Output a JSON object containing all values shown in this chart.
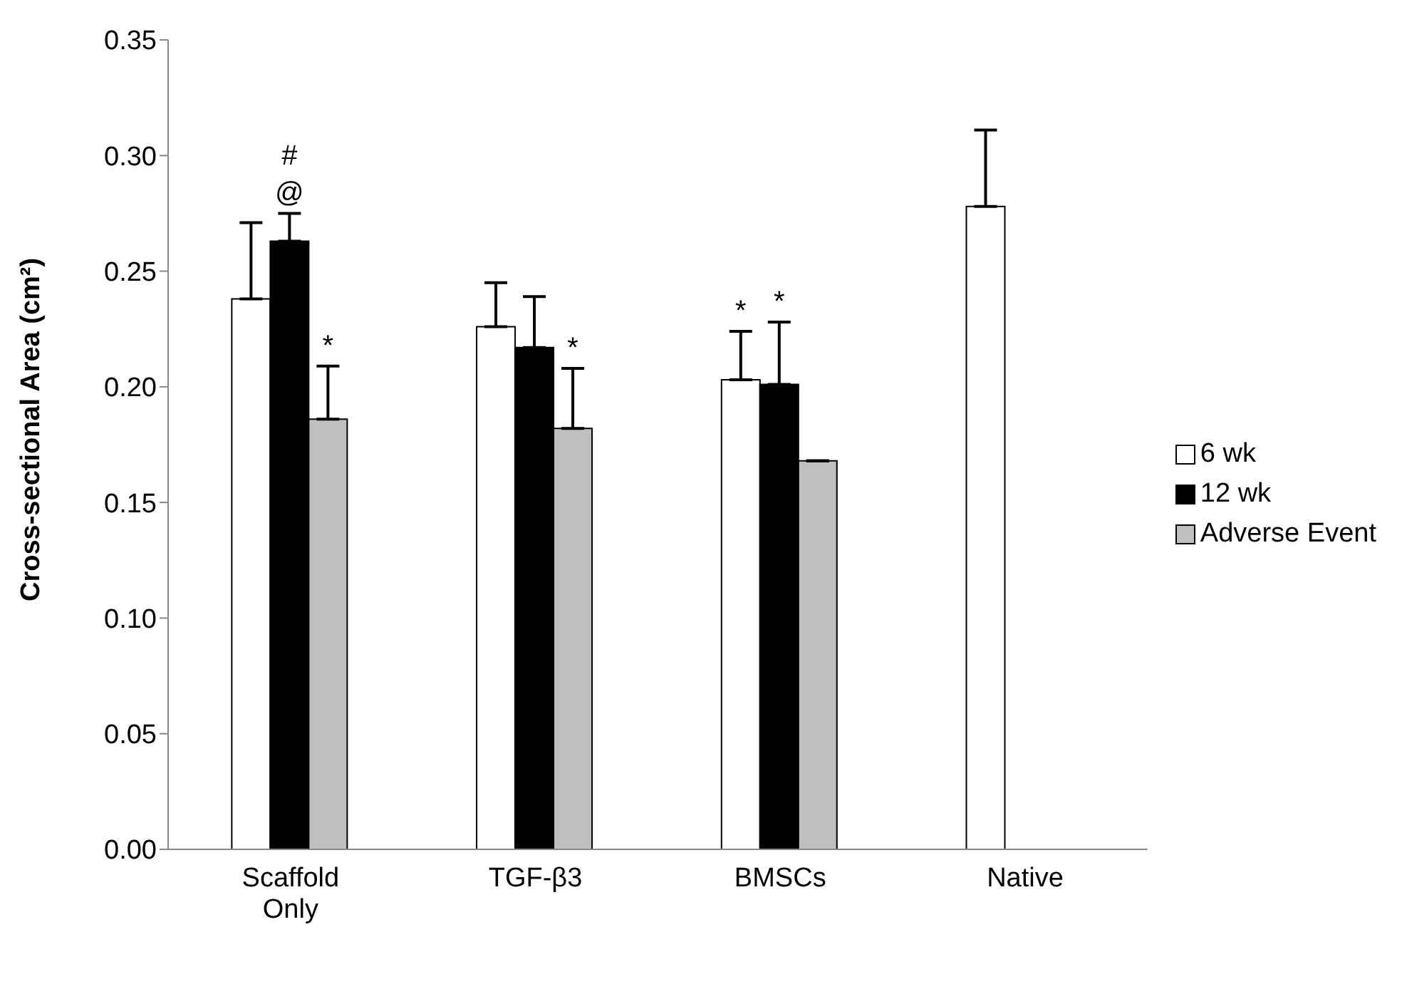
{
  "chart_data": {
    "type": "bar",
    "ylabel": "Cross-sectional Area (cm²)",
    "categories": [
      "Scaffold Only",
      "TGF-β3",
      "BMSCs",
      "Native"
    ],
    "series": [
      {
        "name": "6 wk",
        "color": "#ffffff",
        "values": [
          0.238,
          0.226,
          0.203,
          0.278
        ],
        "errors": [
          [
            0.238,
            0.271
          ],
          [
            0.226,
            0.245
          ],
          [
            0.203,
            0.224
          ],
          [
            0.278,
            0.311
          ]
        ],
        "value_labels": [
          null,
          null,
          "*",
          null
        ]
      },
      {
        "name": "12 wk",
        "color": "#000000",
        "values": [
          0.263,
          0.217,
          0.201,
          null
        ],
        "errors": [
          [
            0.263,
            0.275
          ],
          [
            0.217,
            0.239
          ],
          [
            0.201,
            0.228
          ],
          null
        ],
        "value_labels": [
          "@",
          null,
          "*",
          null
        ]
      },
      {
        "name": "Adverse Event",
        "color": "#bfbfbf",
        "values": [
          0.186,
          0.182,
          0.168,
          null
        ],
        "errors": [
          [
            0.186,
            0.209
          ],
          [
            0.182,
            0.208
          ],
          [
            0.168,
            0.168
          ],
          null
        ],
        "value_labels": [
          "*",
          "*",
          null,
          null
        ]
      }
    ],
    "annotations": [
      "#"
    ],
    "ylim": [
      0,
      0.35
    ],
    "yticks": [
      {
        "value": 0,
        "label": "0.00"
      },
      {
        "value": 0.05,
        "label": "0.05"
      },
      {
        "value": 0.1,
        "label": "0.10"
      },
      {
        "value": 0.15,
        "label": "0.15"
      },
      {
        "value": 0.2,
        "label": "0.20"
      },
      {
        "value": 0.25,
        "label": "0.25"
      },
      {
        "value": 0.3,
        "label": "0.30"
      },
      {
        "value": 0.35,
        "label": "0.35"
      }
    ],
    "grid": false,
    "legend": "right"
  }
}
